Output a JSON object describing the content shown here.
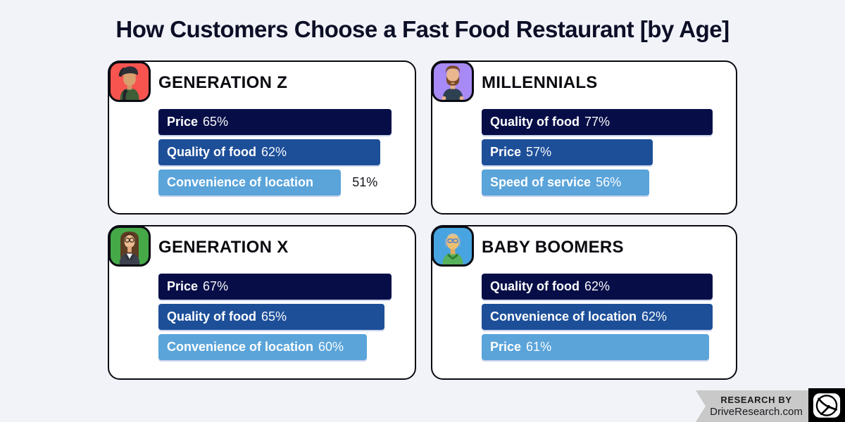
{
  "page": {
    "title": "How Customers Choose a Fast Food Restaurant [by Age]",
    "background": "#f1f3f9"
  },
  "chart_data": [
    {
      "type": "bar",
      "orientation": "horizontal",
      "title": "GENERATION Z",
      "categories": [
        "Price",
        "Quality of food",
        "Convenience of location"
      ],
      "values": [
        65,
        62,
        51
      ],
      "value_labels": [
        "65%",
        "62%",
        "51%"
      ],
      "bar_colors": [
        "#070e47",
        "#1d4f99",
        "#5aa4da"
      ],
      "value_outside": [
        false,
        false,
        true
      ],
      "unit": "percent",
      "xlim": [
        0,
        100
      ]
    },
    {
      "type": "bar",
      "orientation": "horizontal",
      "title": "MILLENNIALS",
      "categories": [
        "Quality of food",
        "Price",
        "Speed of service"
      ],
      "values": [
        77,
        57,
        56
      ],
      "value_labels": [
        "77%",
        "57%",
        "56%"
      ],
      "bar_colors": [
        "#070e47",
        "#1d4f99",
        "#5aa4da"
      ],
      "value_outside": [
        false,
        false,
        false
      ],
      "unit": "percent",
      "xlim": [
        0,
        100
      ]
    },
    {
      "type": "bar",
      "orientation": "horizontal",
      "title": "GENERATION X",
      "categories": [
        "Price",
        "Quality of food",
        "Convenience of location"
      ],
      "values": [
        67,
        65,
        60
      ],
      "value_labels": [
        "67%",
        "65%",
        "60%"
      ],
      "bar_colors": [
        "#070e47",
        "#1d4f99",
        "#5aa4da"
      ],
      "value_outside": [
        false,
        false,
        false
      ],
      "unit": "percent",
      "xlim": [
        0,
        100
      ]
    },
    {
      "type": "bar",
      "orientation": "horizontal",
      "title": "BABY BOOMERS",
      "categories": [
        "Quality of food",
        "Convenience of location",
        "Price"
      ],
      "values": [
        62,
        62,
        61
      ],
      "value_labels": [
        "62%",
        "62%",
        "61%"
      ],
      "bar_colors": [
        "#070e47",
        "#1d4f99",
        "#5aa4da"
      ],
      "value_outside": [
        false,
        false,
        false
      ],
      "unit": "percent",
      "xlim": [
        0,
        100
      ]
    }
  ],
  "panels": [
    {
      "name": "generation-z",
      "avatar_icon": "young-man-backwards-cap-avatar",
      "avatar_bg": "#f8544f"
    },
    {
      "name": "millennials",
      "avatar_icon": "bearded-man-avatar",
      "avatar_bg": "#a78af5"
    },
    {
      "name": "generation-x",
      "avatar_icon": "woman-glasses-avatar",
      "avatar_bg": "#45a948"
    },
    {
      "name": "baby-boomers",
      "avatar_icon": "older-man-glasses-avatar",
      "avatar_bg": "#47a4e0"
    }
  ],
  "footer": {
    "line1": "RESEARCH BY",
    "line2": "DriveResearch.com",
    "logo": "drive-research-wheel-logo",
    "ribbon_color": "#c9c9c9"
  }
}
